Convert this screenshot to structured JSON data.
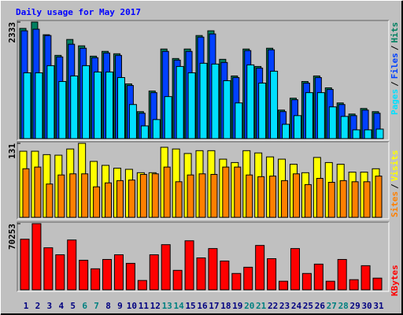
{
  "chart_data": [
    {
      "type": "bar",
      "title": "Daily usage for May 2017",
      "title_color": "#0000ff",
      "ylim": [
        0,
        2333
      ],
      "yticks": [
        2333
      ],
      "separator": "/",
      "series": [
        {
          "name": "Hits",
          "color": "#008060",
          "values": [
            2206,
            2333,
            2079,
            1666,
            1984,
            1857,
            1650,
            1746,
            1698,
            1095,
            540,
            952,
            1793,
            1603,
            1793,
            2063,
            2158,
            1587,
            1254,
            1793,
            1444,
            1809,
            571,
            809,
            1143,
            1254,
            1016,
            714,
            492,
            603,
            540
          ]
        },
        {
          "name": "Files",
          "color": "#0040ff",
          "values": [
            2158,
            2190,
            2063,
            1635,
            1889,
            1809,
            1619,
            1714,
            1666,
            1063,
            508,
            920,
            1746,
            1571,
            1746,
            2031,
            2095,
            1524,
            1222,
            1762,
            1412,
            1778,
            540,
            778,
            1111,
            1222,
            984,
            682,
            460,
            571,
            508
          ]
        },
        {
          "name": "Pages",
          "color": "#00e0ff",
          "values": [
            1317,
            1317,
            1460,
            1143,
            1254,
            1460,
            1333,
            1333,
            1222,
            682,
            254,
            381,
            841,
            1444,
            1317,
            1508,
            1492,
            1159,
            714,
            1476,
            1111,
            1349,
            286,
            460,
            920,
            920,
            635,
            444,
            175,
            175,
            190
          ]
        }
      ]
    },
    {
      "type": "bar",
      "ylim": [
        0,
        131
      ],
      "yticks": [
        131
      ],
      "separator": "/",
      "series": [
        {
          "name": "Visits",
          "color": "#ffff00",
          "values": [
            117,
            117,
            111,
            110,
            121,
            131,
            99,
            92,
            87,
            85,
            79,
            79,
            124,
            121,
            113,
            118,
            118,
            103,
            97,
            118,
            114,
            107,
            103,
            94,
            79,
            106,
            97,
            94,
            80,
            80,
            86
          ]
        },
        {
          "name": "Sites",
          "color": "#ff8000",
          "values": [
            86,
            89,
            59,
            75,
            77,
            77,
            54,
            61,
            65,
            66,
            76,
            77,
            89,
            63,
            75,
            77,
            76,
            89,
            89,
            75,
            72,
            73,
            65,
            77,
            58,
            69,
            62,
            65,
            63,
            63,
            73
          ]
        }
      ]
    },
    {
      "type": "bar",
      "ylim": [
        0,
        70253
      ],
      "yticks": [
        70253
      ],
      "categories": [
        "1",
        "2",
        "3",
        "4",
        "5",
        "6",
        "7",
        "8",
        "9",
        "10",
        "11",
        "12",
        "13",
        "14",
        "15",
        "16",
        "17",
        "18",
        "19",
        "20",
        "21",
        "22",
        "23",
        "24",
        "25",
        "26",
        "27",
        "28",
        "29",
        "30",
        "31"
      ],
      "category_colors": [
        "#000080",
        "#000080",
        "#000080",
        "#000080",
        "#000080",
        "#008080",
        "#008080",
        "#000080",
        "#000080",
        "#000080",
        "#000080",
        "#000080",
        "#008080",
        "#008080",
        "#000080",
        "#000080",
        "#000080",
        "#000080",
        "#000080",
        "#008080",
        "#008080",
        "#000080",
        "#000080",
        "#000080",
        "#000080",
        "#000080",
        "#008080",
        "#008080",
        "#000080",
        "#000080",
        "#000080"
      ],
      "series": [
        {
          "name": "KBytes",
          "color": "#ff0000",
          "values": [
            53722,
            70253,
            44631,
            37192,
            52896,
            31407,
            22315,
            32233,
            37192,
            28101,
            9918,
            37192,
            47937,
            20662,
            52069,
            33886,
            43804,
            30580,
            17356,
            23968,
            47110,
            33060,
            9091,
            43804,
            17356,
            27274,
            9091,
            32233,
            10744,
            25621,
            12397
          ]
        }
      ]
    }
  ]
}
